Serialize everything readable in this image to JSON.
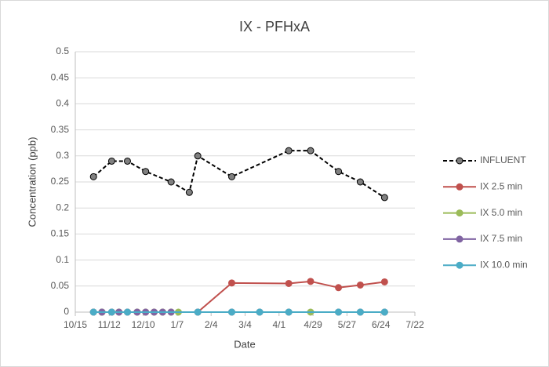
{
  "chart_data": {
    "type": "line",
    "title": "IX - PFHxA",
    "x_label": "Date",
    "y_label": "Concentration (ppb)",
    "xlim": [
      "10/15",
      "7/22"
    ],
    "xticks": [
      "10/15",
      "11/12",
      "12/10",
      "1/7",
      "2/4",
      "3/4",
      "4/1",
      "4/29",
      "5/27",
      "6/24",
      "7/22"
    ],
    "ylim": [
      0,
      0.5
    ],
    "yticks": [
      0,
      0.05,
      0.1,
      0.15,
      0.2,
      0.25,
      0.3,
      0.35,
      0.4,
      0.45,
      0.5
    ],
    "grid": true,
    "legend": "right",
    "series": [
      {
        "name": "INFLUENT",
        "color": "#000000",
        "marker_color": "#808080",
        "dashed": true,
        "x": [
          "10/30",
          "11/14",
          "11/27",
          "12/12",
          "1/2",
          "1/17",
          "1/24",
          "2/21",
          "4/9",
          "4/27",
          "5/20",
          "6/7",
          "6/27"
        ],
        "values": [
          0.26,
          0.29,
          0.29,
          0.27,
          0.25,
          0.23,
          0.3,
          0.26,
          0.31,
          0.31,
          0.27,
          0.25,
          0.22
        ]
      },
      {
        "name": "IX 2.5 min",
        "color": "#c0504d",
        "x": [
          "10/30",
          "11/6",
          "11/14",
          "11/20",
          "11/27",
          "12/5",
          "12/12",
          "12/19",
          "12/26",
          "1/2",
          "1/24",
          "2/21",
          "4/9",
          "4/27",
          "5/20",
          "6/7",
          "6/27"
        ],
        "values": [
          0,
          0,
          0,
          0,
          0,
          0,
          0,
          0,
          0,
          0,
          0,
          0.056,
          0.055,
          0.059,
          0.047,
          0.052,
          0.058
        ]
      },
      {
        "name": "IX 5.0 min",
        "color": "#9bbb59",
        "x": [
          "10/30",
          "11/6",
          "11/14",
          "11/20",
          "11/27",
          "12/5",
          "12/12",
          "12/19",
          "12/26",
          "1/2",
          "1/8",
          "1/24",
          "2/21",
          "3/16",
          "4/9",
          "4/27",
          "5/20",
          "6/7",
          "6/27"
        ],
        "values": [
          0,
          0,
          0,
          0,
          0,
          0,
          0,
          0,
          0,
          0,
          0,
          0,
          0,
          0,
          0,
          0,
          0,
          0,
          0
        ]
      },
      {
        "name": "IX 7.5 min",
        "color": "#8064a2",
        "x": [
          "10/30",
          "11/6",
          "11/14",
          "11/20",
          "11/27",
          "12/5",
          "12/12",
          "12/19",
          "12/26",
          "1/2",
          "1/24",
          "2/21",
          "3/16",
          "4/9",
          "5/20",
          "6/7",
          "6/27"
        ],
        "values": [
          0,
          0,
          0,
          0,
          0,
          0,
          0,
          0,
          0,
          0,
          0,
          0,
          0,
          0,
          0,
          0,
          0
        ]
      },
      {
        "name": "IX 10.0 min",
        "color": "#4bacc6",
        "x": [
          "10/30",
          "11/14",
          "11/27",
          "1/24",
          "2/21",
          "3/16",
          "4/9",
          "5/20",
          "6/7",
          "6/27"
        ],
        "values": [
          0,
          0,
          0,
          0,
          0,
          0,
          0,
          0,
          0,
          0
        ]
      }
    ]
  }
}
